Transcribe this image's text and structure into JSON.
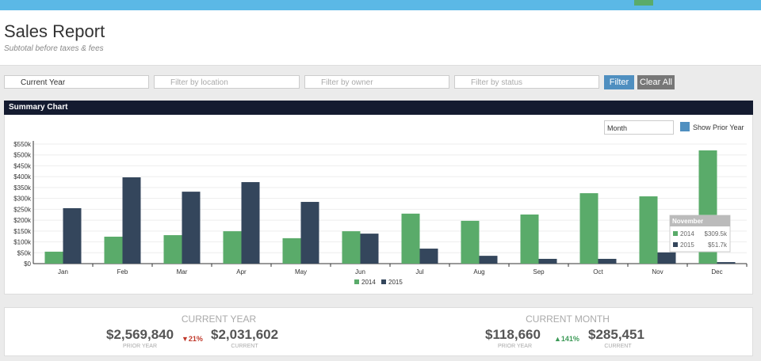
{
  "header": {
    "title": "Sales Report",
    "subtitle": "Subtotal before taxes & fees"
  },
  "filters": {
    "date": "Current Year",
    "location": "Filter by location",
    "owner": "Filter by owner",
    "status": "Filter by status",
    "filter_button": "Filter",
    "clear_button": "Clear All"
  },
  "panel": {
    "title": "Summary Chart",
    "period": "Month",
    "show_prior": "Show Prior Year"
  },
  "chart_data": {
    "type": "bar",
    "categories": [
      "Jan",
      "Feb",
      "Mar",
      "Apr",
      "May",
      "Jun",
      "Jul",
      "Aug",
      "Sep",
      "Oct",
      "Nov",
      "Dec"
    ],
    "series": [
      {
        "name": "2014",
        "color": "#5aab6a",
        "values": [
          55000,
          124000,
          131000,
          149000,
          117000,
          149000,
          230000,
          197000,
          226000,
          324000,
          309500,
          521000
        ]
      },
      {
        "name": "2015",
        "color": "#34465c",
        "values": [
          255000,
          397000,
          331000,
          375000,
          284000,
          138000,
          69000,
          36000,
          22000,
          22000,
          51700,
          7000
        ]
      }
    ],
    "ylim": [
      0,
      550000
    ],
    "yticks": [
      {
        "value": 0,
        "label": "$0"
      },
      {
        "value": 50000,
        "label": "$50k"
      },
      {
        "value": 100000,
        "label": "$100k"
      },
      {
        "value": 150000,
        "label": "$150k"
      },
      {
        "value": 200000,
        "label": "$200k"
      },
      {
        "value": 250000,
        "label": "$250k"
      },
      {
        "value": 300000,
        "label": "$300k"
      },
      {
        "value": 350000,
        "label": "$350k"
      },
      {
        "value": 400000,
        "label": "$400k"
      },
      {
        "value": 450000,
        "label": "$450k"
      },
      {
        "value": 500000,
        "label": "$500k"
      },
      {
        "value": 550000,
        "label": "$550k"
      }
    ],
    "grid": true,
    "legend": "bottom",
    "tooltip": {
      "title": "November",
      "entries": [
        {
          "name": "2014",
          "label": "$309.5k"
        },
        {
          "name": "2015",
          "label": "$51.7k"
        }
      ]
    }
  },
  "summary": {
    "year": {
      "title": "CURRENT YEAR",
      "prior": "$2,569,840",
      "prior_label": "PRIOR YEAR",
      "change": "▼21%",
      "current": "$2,031,602",
      "current_label": "CURRENT"
    },
    "month": {
      "title": "CURRENT MONTH",
      "prior": "$118,660",
      "prior_label": "PRIOR YEAR",
      "change": "▲141%",
      "current": "$285,451",
      "current_label": "CURRENT"
    }
  }
}
